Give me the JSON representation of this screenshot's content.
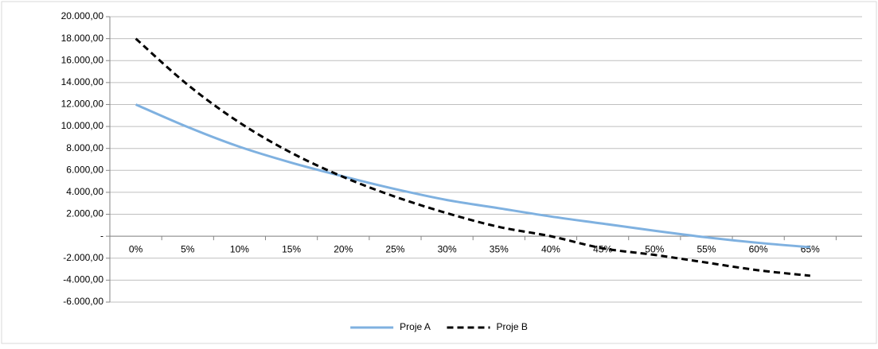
{
  "chart_data": {
    "type": "line",
    "title": "",
    "xlabel": "",
    "ylabel": "",
    "categories": [
      "0%",
      "5%",
      "10%",
      "15%",
      "20%",
      "25%",
      "30%",
      "35%",
      "40%",
      "45%",
      "50%",
      "55%",
      "60%",
      "65%"
    ],
    "series": [
      {
        "name": "Proje A",
        "style": "solid",
        "color": "#7fb1e0",
        "values": [
          12000,
          9950,
          8150,
          6700,
          5450,
          4300,
          3300,
          2550,
          1800,
          1150,
          500,
          -100,
          -600,
          -1000
        ]
      },
      {
        "name": "Proje B",
        "style": "dashed",
        "color": "#000000",
        "values": [
          18000,
          13800,
          10350,
          7600,
          5400,
          3600,
          2100,
          850,
          0,
          -1100,
          -1700,
          -2400,
          -3100,
          -3600
        ]
      }
    ],
    "y_ticks": [
      "20.000,00",
      "18.000,00",
      "16.000,00",
      "14.000,00",
      "12.000,00",
      "10.000,00",
      "8.000,00",
      "6.000,00",
      "4.000,00",
      "2.000,00",
      "-",
      "-2.000,00",
      "-4.000,00",
      "-6.000,00"
    ],
    "ylim": [
      -6000,
      20000
    ],
    "y_step": 2000,
    "grid": true,
    "legend": "bottom"
  }
}
